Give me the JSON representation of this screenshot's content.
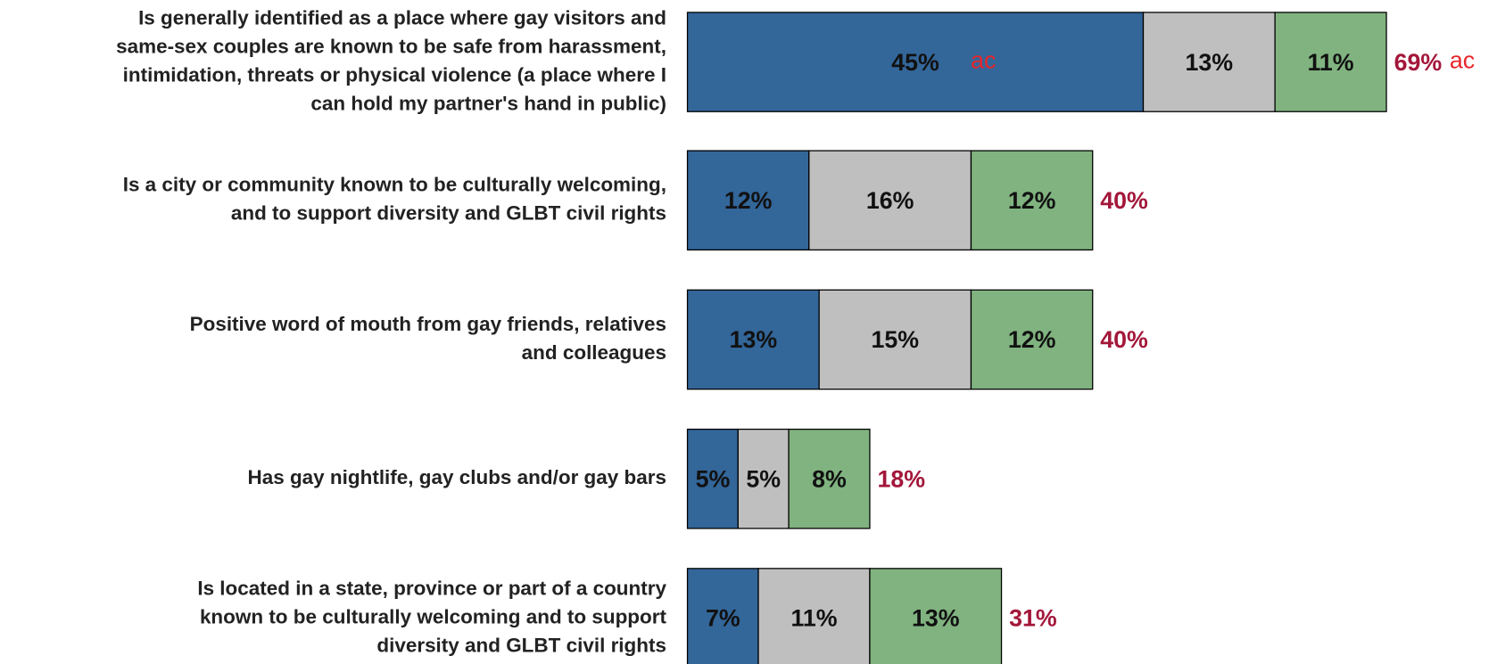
{
  "chart_data": {
    "type": "stacked-bar-horizontal",
    "categories": [
      [
        "Is generally identified as a place where gay visitors and",
        "same-sex couples are known to be safe from harassment,",
        "intimidation, threats or physical violence (a place where I",
        "can hold my partner's hand in public)"
      ],
      [
        "Is a city or community known to be culturally welcoming,",
        "and to support diversity and GLBT civil rights"
      ],
      [
        "Positive word of mouth from gay friends, relatives",
        "and colleagues"
      ],
      [
        "Has gay nightlife, gay clubs and/or gay bars"
      ],
      [
        "Is located in a state, province or part of a country",
        "known to be culturally welcoming and to support",
        "diversity and GLBT civil rights"
      ]
    ],
    "series": [
      {
        "color": "#336699",
        "values": [
          45,
          12,
          13,
          5,
          7
        ],
        "value_labels": [
          "45%",
          "12%",
          "13%",
          "5%",
          "7%"
        ]
      },
      {
        "color": "#bfbfbf",
        "values": [
          13,
          16,
          15,
          5,
          11
        ],
        "value_labels": [
          "13%",
          "16%",
          "15%",
          "5%",
          "11%"
        ]
      },
      {
        "color": "#80b380",
        "values": [
          11,
          12,
          12,
          8,
          13
        ],
        "value_labels": [
          "11%",
          "12%",
          "12%",
          "8%",
          "13%"
        ]
      }
    ],
    "totals": [
      69,
      40,
      40,
      18,
      31
    ],
    "total_labels": [
      "69%",
      "40%",
      "40%",
      "18%",
      "31%"
    ],
    "annotations": [
      "ac",
      "ac"
    ]
  }
}
